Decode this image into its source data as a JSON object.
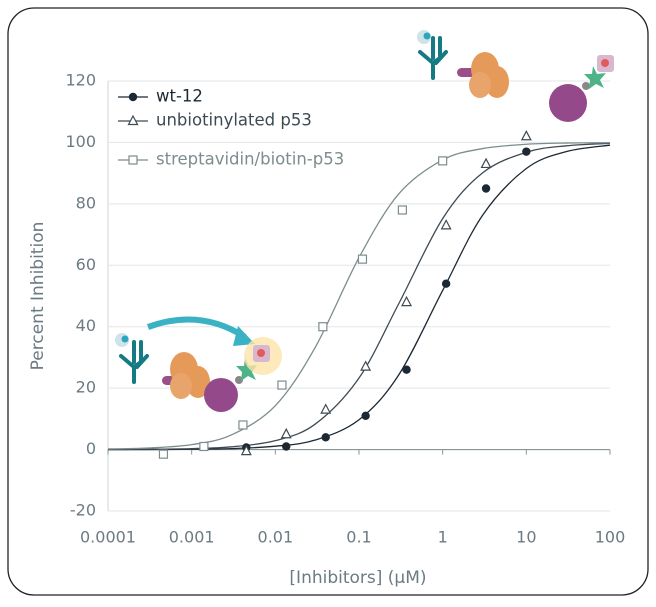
{
  "chart_data": {
    "type": "scatter",
    "x_label": "[Inhibitors] (µM)",
    "y_label": "Percent Inhibition",
    "xscale": "log",
    "xlim": [
      0.0001,
      100
    ],
    "ylim": [
      -20,
      120
    ],
    "xticks": [
      0.0001,
      0.001,
      0.01,
      0.1,
      1,
      10,
      100
    ],
    "yticks": [
      -20,
      0,
      20,
      40,
      60,
      80,
      100,
      120
    ],
    "grid": true,
    "legend": "upper left",
    "series": [
      {
        "name": "wt-12",
        "color": "#1c2833",
        "marker": "circle",
        "x": [
          0.0045,
          0.0135,
          0.04,
          0.12,
          0.37,
          1.1,
          3.3,
          10
        ],
        "values": [
          0.7,
          1,
          4,
          11,
          26,
          54,
          85,
          97
        ],
        "fit": {
          "x": [
            0.0001,
            0.0003,
            0.001,
            0.003,
            0.01,
            0.03,
            0.1,
            0.3,
            1,
            3,
            10,
            30,
            100
          ],
          "values": [
            0,
            0,
            0.1,
            0.3,
            1.1,
            3.1,
            9.7,
            24.4,
            51.8,
            76.3,
            91.5,
            97,
            99.1
          ]
        }
      },
      {
        "name": "unbiotinylated p53",
        "color": "#3d4a52",
        "marker": "triangle",
        "x": [
          0.0045,
          0.0135,
          0.04,
          0.12,
          0.37,
          1.1,
          3.3,
          10
        ],
        "values": [
          -0.5,
          5,
          13,
          27,
          48,
          73,
          93,
          102
        ],
        "fit": {
          "x": [
            0.0001,
            0.0003,
            0.001,
            0.003,
            0.01,
            0.03,
            0.1,
            0.3,
            1,
            3,
            10,
            30,
            100
          ],
          "values": [
            0,
            0.1,
            0.3,
            0.9,
            2.9,
            8.3,
            23.3,
            47.6,
            75.2,
            90.1,
            96.8,
            98.9,
            99.7
          ]
        }
      },
      {
        "name": "streptavidin/biotin-p53",
        "color": "#7d8c8e",
        "marker": "square",
        "x": [
          0.00046,
          0.0014,
          0.0041,
          0.012,
          0.037,
          0.11,
          0.33,
          1
        ],
        "values": [
          -1.5,
          1,
          8,
          21,
          40,
          62,
          78,
          94
        ],
        "fit": {
          "x": [
            0.0001,
            0.0003,
            0.001,
            0.003,
            0.01,
            0.03,
            0.1,
            0.3,
            1,
            3,
            10,
            30,
            100
          ],
          "values": [
            0.2,
            0.5,
            1.6,
            4.8,
            14.3,
            33.3,
            62.5,
            83.3,
            94.3,
            98,
            99.4,
            99.8,
            99.9
          ]
        }
      }
    ]
  }
}
